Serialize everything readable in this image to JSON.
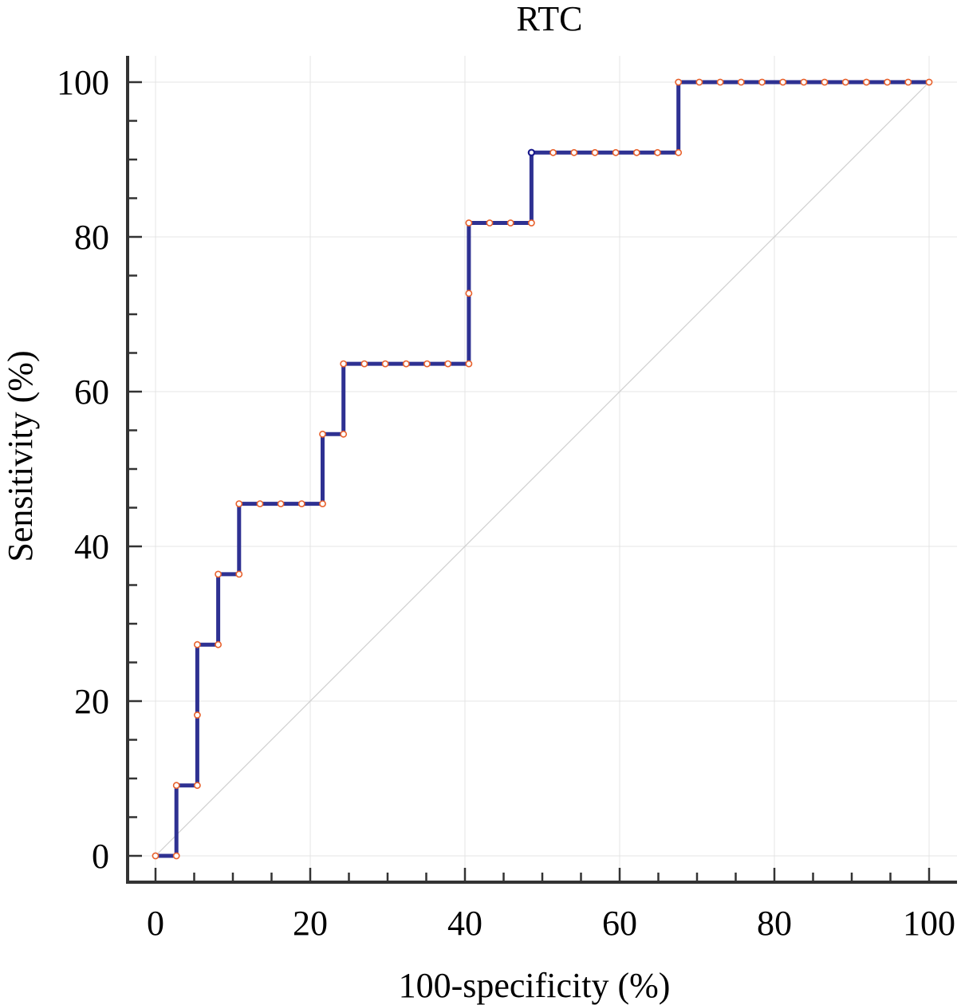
{
  "chart_data": {
    "type": "line",
    "title": "RTC",
    "xlabel": "100-specificity (%)",
    "ylabel": "Sensitivity (%)",
    "xlim": [
      0,
      100
    ],
    "ylim": [
      0,
      100
    ],
    "xticks": [
      "0",
      "20",
      "40",
      "60",
      "80",
      "100"
    ],
    "yticks": [
      "0",
      "20",
      "40",
      "60",
      "80",
      "100"
    ],
    "grid": true,
    "reference_line": true,
    "line_color": "#2e3192",
    "marker_color": "#e8612c",
    "highlight_color": "#1a1a8c",
    "reference_color": "#cfcfcf",
    "series": [
      {
        "points": [
          [
            0,
            0
          ],
          [
            2.7,
            0
          ],
          [
            2.7,
            9.1
          ],
          [
            5.4,
            9.1
          ],
          [
            5.4,
            18.2
          ],
          [
            5.4,
            27.3
          ],
          [
            8.1,
            27.3
          ],
          [
            8.1,
            36.4
          ],
          [
            10.8,
            36.4
          ],
          [
            10.8,
            45.5
          ],
          [
            13.5,
            45.5
          ],
          [
            16.2,
            45.5
          ],
          [
            18.9,
            45.5
          ],
          [
            21.6,
            45.5
          ],
          [
            21.6,
            54.5
          ],
          [
            24.3,
            54.5
          ],
          [
            24.3,
            63.6
          ],
          [
            27.0,
            63.6
          ],
          [
            29.7,
            63.6
          ],
          [
            32.4,
            63.6
          ],
          [
            35.1,
            63.6
          ],
          [
            37.8,
            63.6
          ],
          [
            40.5,
            63.6
          ],
          [
            40.5,
            72.7
          ],
          [
            40.5,
            81.8
          ],
          [
            43.2,
            81.8
          ],
          [
            45.9,
            81.8
          ],
          [
            48.6,
            81.8
          ],
          [
            48.6,
            90.9
          ],
          [
            51.4,
            90.9
          ],
          [
            54.1,
            90.9
          ],
          [
            56.8,
            90.9
          ],
          [
            59.5,
            90.9
          ],
          [
            62.2,
            90.9
          ],
          [
            64.9,
            90.9
          ],
          [
            67.6,
            90.9
          ],
          [
            67.6,
            100
          ],
          [
            70.3,
            100
          ],
          [
            73.0,
            100
          ],
          [
            75.7,
            100
          ],
          [
            78.4,
            100
          ],
          [
            81.1,
            100
          ],
          [
            83.8,
            100
          ],
          [
            86.5,
            100
          ],
          [
            89.2,
            100
          ],
          [
            91.9,
            100
          ],
          [
            94.6,
            100
          ],
          [
            97.3,
            100
          ],
          [
            100,
            100
          ]
        ],
        "highlight_point": [
          48.6,
          90.9
        ]
      }
    ]
  }
}
